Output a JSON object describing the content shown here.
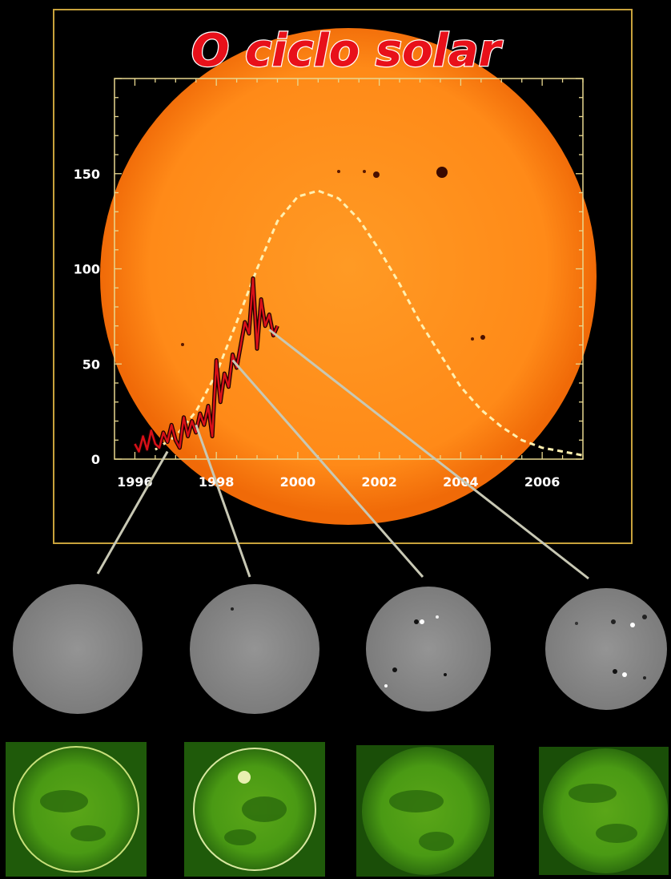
{
  "title": "O ciclo solar",
  "colors": {
    "background": "#000000",
    "frame": "#c8a23c",
    "sun": "#ff8c1a",
    "sun_edge": "#f06a08",
    "title_fill": "#e8101a",
    "title_stroke": "#ffffff",
    "observed_line": "#d81018",
    "predicted_line": "#fff0b0",
    "connector": "#c8c8b4",
    "magnetogram": "#8a8a8a",
    "euv_dark": "#2f7a12",
    "euv_light": "#8ccc2a"
  },
  "chart_data": {
    "type": "line",
    "title": "O ciclo solar",
    "xlabel": "",
    "ylabel": "",
    "xlim": [
      1995.5,
      2007.0
    ],
    "ylim": [
      0,
      200
    ],
    "x_ticks": [
      1996,
      1998,
      2000,
      2002,
      2004,
      2006
    ],
    "y_ticks": [
      0,
      50,
      100,
      150
    ],
    "grid": false,
    "series": [
      {
        "style": "solid",
        "color": "#d81018",
        "x": [
          1996.0,
          1996.1,
          1996.2,
          1996.3,
          1996.4,
          1996.5,
          1996.6,
          1996.7,
          1996.8,
          1996.9,
          1997.0,
          1997.1,
          1997.2,
          1997.3,
          1997.4,
          1997.5,
          1997.6,
          1997.7,
          1997.8,
          1997.9,
          1998.0,
          1998.1,
          1998.2,
          1998.3,
          1998.4,
          1998.5,
          1998.6,
          1998.7,
          1998.8,
          1998.9,
          1999.0,
          1999.1,
          1999.2,
          1999.3,
          1999.4,
          1999.5
        ],
        "y": [
          8,
          4,
          12,
          5,
          15,
          8,
          6,
          14,
          9,
          18,
          10,
          6,
          22,
          12,
          20,
          14,
          24,
          18,
          28,
          12,
          52,
          30,
          45,
          38,
          55,
          48,
          60,
          72,
          66,
          95,
          58,
          84,
          70,
          76,
          65,
          70
        ]
      },
      {
        "style": "dashed",
        "color": "#fff0b0",
        "x": [
          1996.5,
          1997.0,
          1997.5,
          1998.0,
          1998.5,
          1999.0,
          1999.5,
          2000.0,
          2000.5,
          2001.0,
          2001.5,
          2002.0,
          2002.5,
          2003.0,
          2003.5,
          2004.0,
          2004.5,
          2005.0,
          2005.5,
          2006.0,
          2006.5,
          2007.0
        ],
        "y": [
          5,
          12,
          25,
          45,
          72,
          100,
          125,
          138,
          141,
          137,
          126,
          110,
          92,
          72,
          55,
          38,
          26,
          17,
          10,
          6,
          4,
          2
        ]
      }
    ],
    "annotations": [
      {
        "marker": "magnetogram-1",
        "x": 1996.8,
        "y": 4
      },
      {
        "marker": "magnetogram-2",
        "x": 1997.5,
        "y": 18
      },
      {
        "marker": "magnetogram-3",
        "x": 1998.4,
        "y": 52
      },
      {
        "marker": "magnetogram-4",
        "x": 1999.3,
        "y": 68
      }
    ]
  }
}
